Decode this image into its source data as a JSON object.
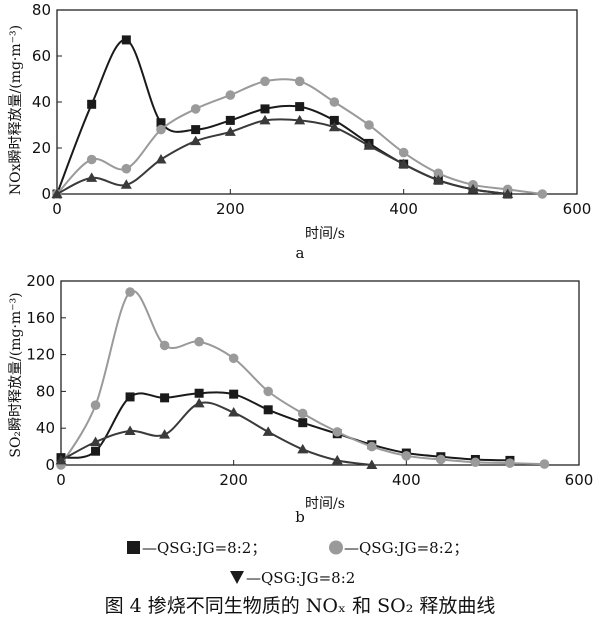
{
  "chart_data": [
    {
      "type": "line",
      "panel_label": "a",
      "xlabel": "时间/s",
      "ylabel": "NOx瞬时释放量/(mg·m⁻³)",
      "xlim": [
        0,
        600
      ],
      "ylim": [
        0,
        80
      ],
      "xticks": [
        "0",
        "200",
        "400",
        "600"
      ],
      "yticks": [
        "0",
        "20",
        "40",
        "60",
        "80"
      ],
      "grid": false,
      "series": [
        {
          "marker": "square",
          "color": "#1a1a1a",
          "x": [
            0,
            40,
            80,
            120,
            160,
            200,
            240,
            280,
            320,
            360,
            400,
            440,
            480,
            520
          ],
          "y": [
            0,
            39,
            67,
            31,
            28,
            32,
            37,
            38,
            32,
            22,
            13,
            6,
            2,
            0
          ]
        },
        {
          "marker": "circle",
          "color": "#9a9a9a",
          "x": [
            0,
            40,
            80,
            120,
            160,
            200,
            240,
            280,
            320,
            360,
            400,
            440,
            480,
            520,
            560
          ],
          "y": [
            0,
            15,
            11,
            28,
            37,
            43,
            49,
            49,
            40,
            30,
            18,
            9,
            4,
            2,
            0
          ]
        },
        {
          "marker": "triangle",
          "color": "#3a3a3a",
          "x": [
            0,
            40,
            80,
            120,
            160,
            200,
            240,
            280,
            320,
            360,
            400,
            440,
            480,
            520
          ],
          "y": [
            0,
            7,
            4,
            15,
            23,
            27,
            32,
            32,
            29,
            21,
            13,
            6,
            2,
            0
          ]
        }
      ]
    },
    {
      "type": "line",
      "panel_label": "b",
      "xlabel": "时间/s",
      "ylabel": "SO₂瞬时释放量/(mg·m⁻³)",
      "xlim": [
        0,
        600
      ],
      "ylim": [
        0,
        200
      ],
      "xticks": [
        "0",
        "200",
        "400",
        "600"
      ],
      "yticks": [
        "0",
        "40",
        "80",
        "120",
        "160",
        "200"
      ],
      "grid": false,
      "series": [
        {
          "marker": "square",
          "color": "#1a1a1a",
          "x": [
            0,
            40,
            80,
            120,
            160,
            200,
            240,
            280,
            320,
            360,
            400,
            440,
            480,
            520
          ],
          "y": [
            8,
            15,
            74,
            73,
            78,
            77,
            60,
            46,
            34,
            22,
            13,
            9,
            6,
            5
          ]
        },
        {
          "marker": "circle",
          "color": "#9a9a9a",
          "x": [
            0,
            40,
            80,
            120,
            160,
            200,
            240,
            280,
            320,
            360,
            400,
            440,
            480,
            520,
            560
          ],
          "y": [
            0,
            65,
            188,
            130,
            134,
            116,
            80,
            56,
            36,
            20,
            10,
            6,
            3,
            2,
            1
          ]
        },
        {
          "marker": "triangle",
          "color": "#3a3a3a",
          "x": [
            0,
            40,
            80,
            120,
            160,
            200,
            240,
            280,
            320,
            360
          ],
          "y": [
            5,
            25,
            37,
            33,
            67,
            57,
            36,
            17,
            5,
            0
          ]
        }
      ]
    }
  ],
  "legend": [
    {
      "marker": "square",
      "color": "#1a1a1a",
      "label": "—QSG:JG=8:2；"
    },
    {
      "marker": "circle",
      "color": "#9a9a9a",
      "label": "—QSG:JG=8:2；"
    },
    {
      "marker": "triangle",
      "color": "#1a1a1a",
      "label": "—QSG:JG=8:2"
    }
  ],
  "caption": "图 4   掺烧不同生物质的 NOₓ 和 SO₂ 释放曲线"
}
